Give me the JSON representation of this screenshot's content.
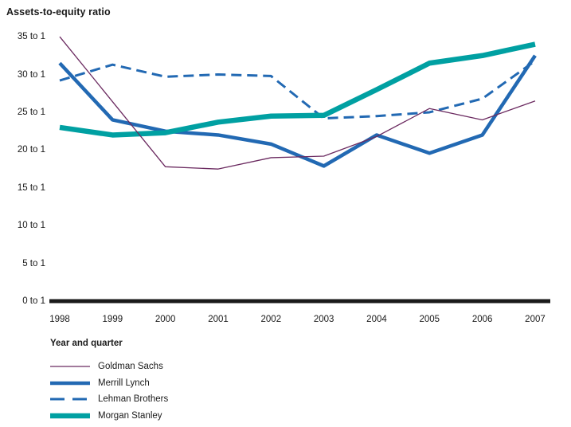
{
  "chart_data": {
    "type": "line",
    "title": "Assets-to-equity ratio",
    "xlabel": "Year and quarter",
    "ylabel": "Assets-to-equity ratio",
    "grid": false,
    "legend_position": "bottom-left",
    "ylim": [
      0,
      35
    ],
    "axis_color": "#1a1a1a",
    "categories": [
      "1998",
      "1999",
      "2000",
      "2001",
      "2002",
      "2003",
      "2004",
      "2005",
      "2006",
      "2007"
    ],
    "y_ticks": [
      {
        "value": 35,
        "label": "35 to 1"
      },
      {
        "value": 30,
        "label": "30 to 1"
      },
      {
        "value": 25,
        "label": "25 to 1"
      },
      {
        "value": 20,
        "label": "20 to 1"
      },
      {
        "value": 15,
        "label": "15 to 1"
      },
      {
        "value": 10,
        "label": "10 to 1"
      },
      {
        "value": 5,
        "label": "5 to 1"
      },
      {
        "value": 0,
        "label": "0 to 1"
      }
    ],
    "series": [
      {
        "name": "Lehman Brothers",
        "color": "#2269b3",
        "stroke_width": 3,
        "dash": "13 7",
        "values": [
          29.2,
          31.3,
          29.7,
          30.0,
          29.8,
          24.2,
          24.5,
          25.0,
          26.8,
          31.8
        ]
      },
      {
        "name": "Merrill Lynch",
        "color": "#2269b3",
        "stroke_width": 4.5,
        "dash": "",
        "values": [
          31.5,
          24.0,
          22.5,
          22.0,
          20.8,
          17.9,
          22.0,
          19.6,
          22.0,
          32.5
        ]
      },
      {
        "name": "Morgan Stanley",
        "color": "#00a0a2",
        "stroke_width": 6.5,
        "dash": "",
        "values": [
          23.0,
          22.0,
          22.3,
          23.7,
          24.5,
          24.6,
          28.0,
          31.5,
          32.5,
          34.0
        ]
      },
      {
        "name": "Goldman Sachs",
        "color": "#6b2a60",
        "stroke_width": 1.3,
        "dash": "",
        "values": [
          35.0,
          26.4,
          17.8,
          17.5,
          19.0,
          19.2,
          21.8,
          25.5,
          24.0,
          26.5
        ]
      }
    ],
    "legend_order": [
      "Goldman Sachs",
      "Merrill Lynch",
      "Lehman Brothers",
      "Morgan Stanley"
    ]
  }
}
